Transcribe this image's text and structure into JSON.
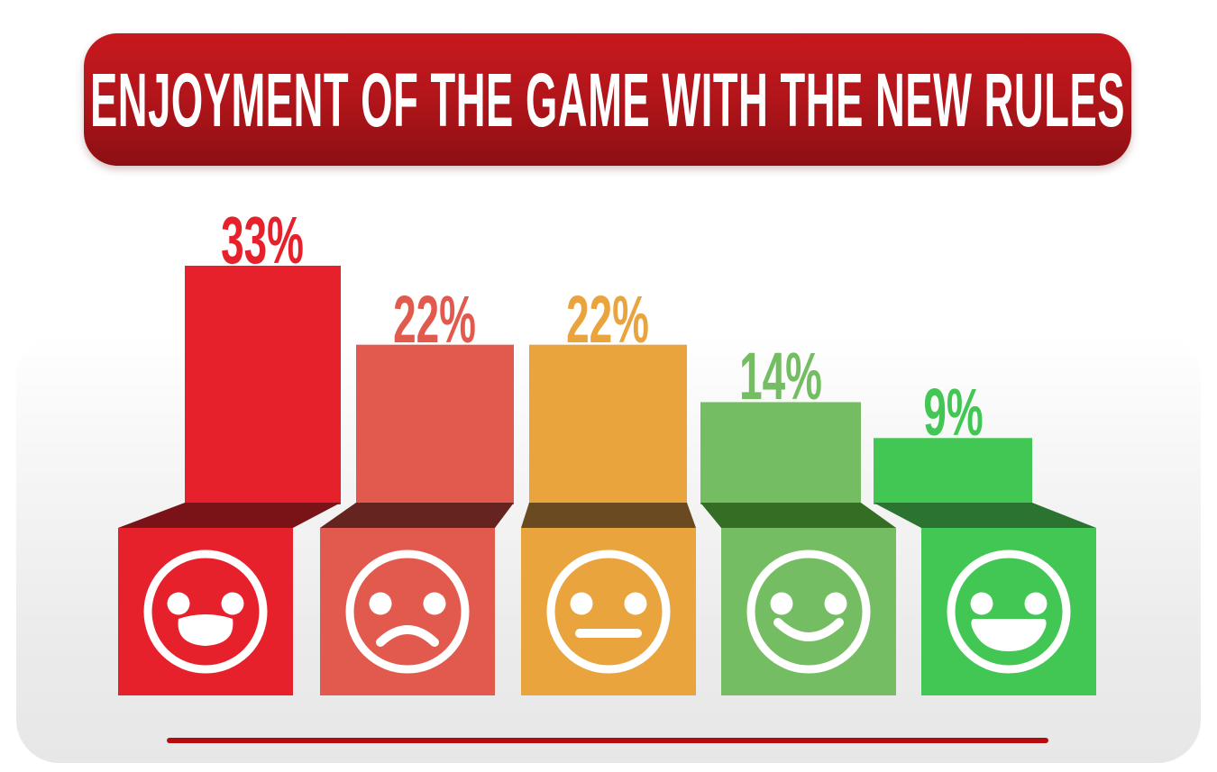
{
  "header": {
    "title": "ENJOYMENT OF THE GAME WITH THE NEW RULES",
    "banner_color_top": "#c7191f",
    "banner_color_bottom": "#8c0f13",
    "text_color": "#ffffff"
  },
  "chart_data": {
    "type": "bar",
    "title": "ENJOYMENT OF THE GAME WITH THE NEW RULES",
    "unit": "percent",
    "ylim": [
      0,
      35
    ],
    "grid": false,
    "legend": "none",
    "categories": [
      "very-unhappy",
      "unhappy",
      "neutral",
      "happy",
      "very-happy"
    ],
    "values": [
      33,
      22,
      22,
      14,
      9
    ],
    "labels": [
      "33%",
      "22%",
      "22%",
      "14%",
      "9%"
    ],
    "bars": [
      {
        "category": "very-unhappy",
        "face": "very-sad",
        "value": 33,
        "label": "33%",
        "color": "#e6212c",
        "lid_color": "#7a1317"
      },
      {
        "category": "unhappy",
        "face": "sad",
        "value": 22,
        "label": "22%",
        "color": "#e25a4d",
        "lid_color": "#662420"
      },
      {
        "category": "neutral",
        "face": "neutral",
        "value": 22,
        "label": "22%",
        "color": "#e9a43e",
        "lid_color": "#6a4a20"
      },
      {
        "category": "happy",
        "face": "smile",
        "value": 14,
        "label": "14%",
        "color": "#74bd62",
        "lid_color": "#346d24"
      },
      {
        "category": "very-happy",
        "face": "grin",
        "value": 9,
        "label": "9%",
        "color": "#42c654",
        "lid_color": "#2a7330"
      }
    ],
    "face_color": "#ffffff"
  },
  "footer": {
    "divider_color": "#b30d12"
  }
}
